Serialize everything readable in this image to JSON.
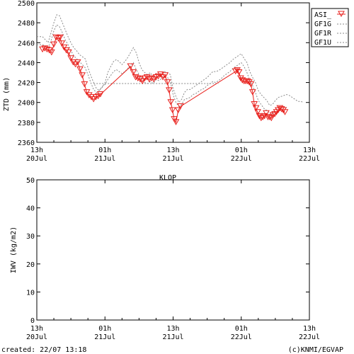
{
  "station": "KLOP",
  "footer": {
    "created": "created: 22/07 13:18",
    "credit": "(c)KNMI/EGVAP"
  },
  "colors": {
    "asi": "#e8201c",
    "gfx": "#8a8a8a",
    "axis": "#000000"
  },
  "chart_data": [
    {
      "type": "line",
      "ylabel": "ZTD (mm)",
      "xlim": [
        0,
        48
      ],
      "ylim": [
        2360,
        2500
      ],
      "yticks": [
        2360,
        2380,
        2400,
        2420,
        2440,
        2460,
        2480,
        2500
      ],
      "xticks": [
        {
          "x": 0,
          "top": "13h",
          "bottom": "20Jul"
        },
        {
          "x": 12,
          "top": "01h",
          "bottom": "21Jul"
        },
        {
          "x": 24,
          "top": "13h",
          "bottom": "21Jul"
        },
        {
          "x": 36,
          "top": "01h",
          "bottom": "22Jul"
        },
        {
          "x": 48,
          "top": "13h",
          "bottom": "22Jul"
        }
      ],
      "legend": {
        "placement": "top-right",
        "entries": [
          "ASI_",
          "GF1G",
          "GF1R",
          "GF1U"
        ]
      },
      "series": [
        {
          "name": "ASI_",
          "style": "line-triangles",
          "x": [
            1,
            1.4,
            1.8,
            2.2,
            2.6,
            3,
            3.4,
            3.8,
            4.1,
            4.4,
            4.8,
            5.2,
            5.6,
            6,
            6.4,
            6.8,
            7.2,
            7.6,
            8,
            8.4,
            8.8,
            9.2,
            9.6,
            10,
            10.4,
            10.8,
            11.2,
            16.5,
            17,
            17.4,
            17.8,
            18.2,
            18.6,
            19,
            19.4,
            19.8,
            20.2,
            20.6,
            21,
            21.4,
            21.8,
            22.2,
            22.6,
            23,
            23.3,
            23.6,
            23.9,
            24.2,
            24.5,
            24.9,
            25.3,
            35,
            35.3,
            35.6,
            35.9,
            36.2,
            36.5,
            36.8,
            37.1,
            37.4,
            37.7,
            38,
            38.3,
            38.6,
            38.9,
            39.2,
            39.5,
            39.8,
            40.1,
            40.4,
            40.7,
            41,
            41.3,
            41.6,
            41.9,
            42.2,
            42.5,
            42.8,
            43.1,
            43.4,
            43.7
          ],
          "y": [
            2453,
            2454,
            2453,
            2452,
            2450,
            2458,
            2465,
            2464,
            2465,
            2459,
            2455,
            2452,
            2450,
            2444,
            2440,
            2438,
            2440,
            2433,
            2427,
            2418,
            2410,
            2407,
            2405,
            2403,
            2405,
            2406,
            2408,
            2436,
            2430,
            2425,
            2424,
            2423,
            2421,
            2424,
            2425,
            2423,
            2424,
            2423,
            2425,
            2426,
            2428,
            2425,
            2427,
            2420,
            2412,
            2400,
            2392,
            2383,
            2380,
            2392,
            2396,
            2431,
            2432,
            2430,
            2424,
            2422,
            2421,
            2421,
            2421,
            2420,
            2418,
            2410,
            2398,
            2394,
            2390,
            2386,
            2384,
            2385,
            2386,
            2389,
            2385,
            2385,
            2384,
            2387,
            2388,
            2390,
            2392,
            2394,
            2393,
            2392,
            2390
          ]
        },
        {
          "name": "GF1G",
          "style": "dashed",
          "x": [
            0,
            1,
            2,
            2.5,
            3,
            3.5,
            4,
            4.5,
            5,
            5.5,
            6,
            6.5,
            7,
            7.5,
            8,
            8.5,
            9,
            9.5,
            10,
            10.5,
            11,
            11.5,
            12,
            12.5,
            13,
            13.5,
            14,
            14.5,
            15,
            15.5,
            16,
            16.5,
            17,
            17.5,
            18,
            18.5,
            19,
            19.5,
            20,
            20.5,
            21,
            21.5,
            22,
            22.5,
            23,
            23.5,
            24,
            24.5,
            25,
            25.5,
            26,
            26.5,
            27,
            27.5,
            28,
            28.5,
            29,
            29.5,
            30,
            30.5,
            31,
            31.5,
            32,
            32.5,
            33,
            33.5,
            34,
            34.5,
            35,
            35.5,
            36,
            36.5,
            37,
            37.5,
            38,
            38.5,
            39,
            39.5,
            40,
            40.5,
            41,
            41.5,
            42,
            42.5,
            43,
            43.5,
            44,
            44.5,
            45,
            45.5,
            46,
            46.5,
            47
          ],
          "y": [
            2466,
            2466,
            2460,
            2470,
            2480,
            2488,
            2487,
            2480,
            2473,
            2466,
            2460,
            2455,
            2452,
            2448,
            2446,
            2444,
            2435,
            2427,
            2420,
            2414,
            2412,
            2415,
            2420,
            2430,
            2436,
            2441,
            2443,
            2441,
            2438,
            2441,
            2445,
            2450,
            2455,
            2450,
            2440,
            2433,
            2430,
            2428,
            2430,
            2425,
            2429,
            2427,
            2428,
            2431,
            2430,
            2428,
            2414,
            2406,
            2400,
            2403,
            2410,
            2413,
            2413,
            2415,
            2417,
            2419,
            2421,
            2423,
            2425,
            2428,
            2431,
            2431,
            2432,
            2434,
            2436,
            2438,
            2440,
            2443,
            2445,
            2447,
            2449,
            2444,
            2440,
            2431,
            2425,
            2420,
            2412,
            2408,
            2405,
            2402,
            2397,
            2398,
            2402,
            2405,
            2406,
            2407,
            2408,
            2407,
            2405,
            2403,
            2401,
            2401,
            2400
          ]
        },
        {
          "name": "GF1R",
          "style": "dashed",
          "x": [
            0,
            1,
            2,
            2.5,
            3,
            3.5,
            4,
            4.5,
            5,
            5.5,
            6,
            6.5,
            7,
            7.5,
            8,
            8.5,
            9,
            9.5,
            10,
            10.5,
            11,
            11.5,
            12,
            12.5,
            13,
            13.5,
            14,
            14.5,
            15,
            15.5,
            16,
            16.5,
            17,
            17.5,
            18,
            18.5,
            19,
            19.5,
            20,
            20.5,
            21,
            21.5,
            22,
            22.5,
            23,
            23.5,
            24,
            24.5,
            25,
            25.5,
            26,
            26.5,
            27,
            27.5,
            28,
            28.5,
            29,
            29.5,
            30,
            30.5,
            31,
            31.5,
            32,
            32.5,
            33,
            33.5,
            34,
            34.5,
            35,
            35.5,
            36,
            36.5,
            37,
            37.5,
            38,
            38.5,
            39,
            39.5,
            40,
            40.5,
            41,
            41.5,
            42,
            42.5,
            43,
            43.5,
            44
          ],
          "y": [
            2458,
            2458,
            2455,
            2462,
            2472,
            2478,
            2476,
            2470,
            2463,
            2458,
            2452,
            2447,
            2444,
            2441,
            2438,
            2435,
            2428,
            2420,
            2413,
            2410,
            2412,
            2416,
            2418,
            2423,
            2427,
            2431,
            2433,
            2431,
            2429,
            2431,
            2434,
            2437,
            2440,
            2433,
            2428,
            2424,
            2420,
            2419,
            2421,
            2419,
            2423,
            2422,
            2424,
            2426,
            2425,
            2422,
            2408,
            2400,
            2396,
            2398,
            2403,
            2404,
            2405,
            2408,
            2409,
            2411,
            2413,
            2414,
            2417,
            2419,
            2421,
            2420,
            2422,
            2424,
            2427,
            2429,
            2431,
            2434,
            2436,
            2438,
            2440,
            2436,
            2430,
            2422,
            2417,
            2410,
            2402,
            2398,
            2394,
            2392,
            2388,
            2389,
            2392,
            2395,
            2395,
            2396,
            2395
          ]
        },
        {
          "name": "GF1U",
          "style": "dashed",
          "x": [
            10,
            12,
            14,
            16,
            18,
            20,
            22,
            24,
            26,
            28,
            30,
            32
          ],
          "y": [
            2419,
            2419,
            2419,
            2419,
            2419,
            2419,
            2419,
            2419,
            2419,
            2419,
            2419,
            2419
          ]
        }
      ]
    },
    {
      "type": "line",
      "ylabel": "IWV (kg/m2)",
      "xlim": [
        0,
        48
      ],
      "ylim": [
        0,
        50
      ],
      "yticks": [
        0,
        10,
        20,
        30,
        40,
        50
      ],
      "xticks": [
        {
          "x": 0,
          "top": "13h",
          "bottom": "20Jul"
        },
        {
          "x": 12,
          "top": "01h",
          "bottom": "21Jul"
        },
        {
          "x": 24,
          "top": "13h",
          "bottom": "21Jul"
        },
        {
          "x": 36,
          "top": "01h",
          "bottom": "22Jul"
        },
        {
          "x": 48,
          "top": "13h",
          "bottom": "22Jul"
        }
      ],
      "series": []
    }
  ]
}
